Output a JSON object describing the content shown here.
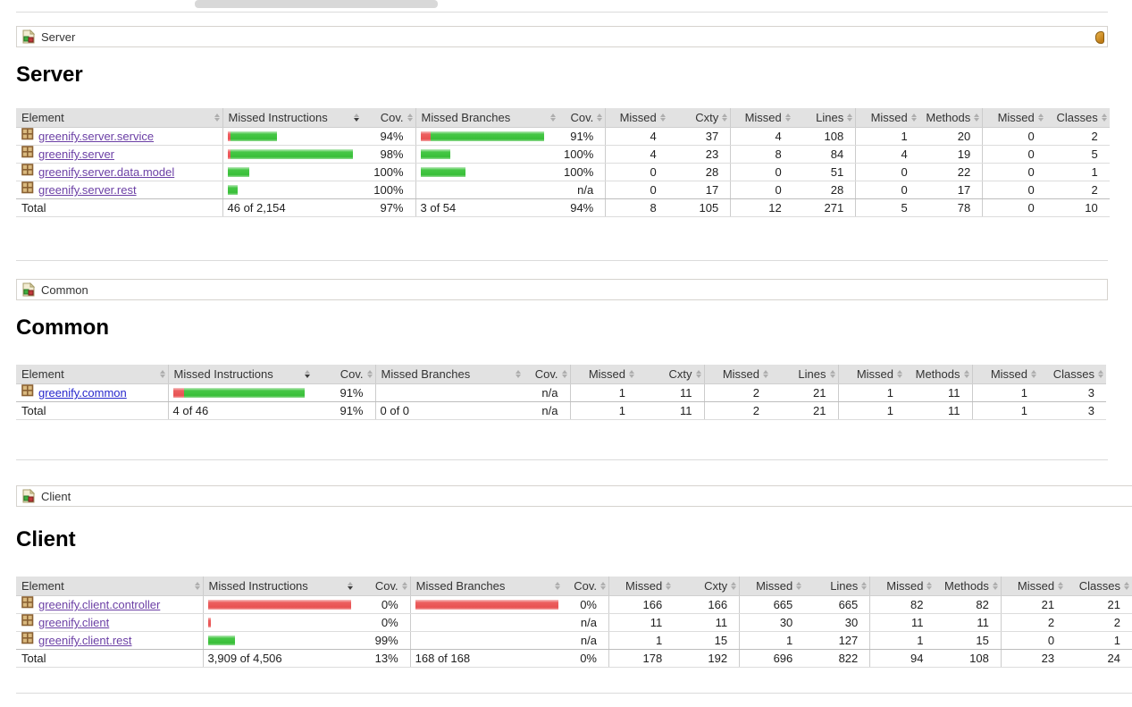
{
  "colors": {
    "bar_green": "#38bf38",
    "bar_red": "#e85252",
    "link_visited": "#6b3fa5",
    "link_unvisited": "#2727cc",
    "header_bg": "#e2e2e2",
    "crumb_border": "#d6d3ce",
    "session_icon_amber": "#c07c16"
  },
  "headers": [
    {
      "label": "Element",
      "align": "left",
      "sort": "none"
    },
    {
      "label": "Missed Instructions",
      "align": "left",
      "sort": "desc"
    },
    {
      "label": "Cov.",
      "align": "right",
      "sort": "none"
    },
    {
      "label": "Missed Branches",
      "align": "left",
      "sort": "none"
    },
    {
      "label": "Cov.",
      "align": "right",
      "sort": "none"
    },
    {
      "label": "Missed",
      "align": "right",
      "sort": "none"
    },
    {
      "label": "Cxty",
      "align": "right",
      "sort": "none"
    },
    {
      "label": "Missed",
      "align": "right",
      "sort": "none"
    },
    {
      "label": "Lines",
      "align": "right",
      "sort": "none"
    },
    {
      "label": "Missed",
      "align": "right",
      "sort": "none"
    },
    {
      "label": "Methods",
      "align": "right",
      "sort": "none"
    },
    {
      "label": "Missed",
      "align": "right",
      "sort": "none"
    },
    {
      "label": "Classes",
      "align": "right",
      "sort": "none"
    }
  ],
  "sections": [
    {
      "breadcrumb_label": "Server",
      "heading": "Server",
      "session_icon": true,
      "table": {
        "rows": [
          {
            "name": "greenify.server.service",
            "visited": true,
            "instr_bar": {
              "red": 3,
              "green": 52
            },
            "instr_cov": "94%",
            "branch_bar": {
              "red": 11,
              "green": 127
            },
            "branch_cov": "91%",
            "nums": [
              "4",
              "37",
              "4",
              "108",
              "1",
              "20",
              "0",
              "2"
            ]
          },
          {
            "name": "greenify.server",
            "visited": true,
            "instr_bar": {
              "red": 3,
              "green": 137
            },
            "instr_cov": "98%",
            "branch_bar": {
              "red": 0,
              "green": 33
            },
            "branch_cov": "100%",
            "nums": [
              "4",
              "23",
              "8",
              "84",
              "4",
              "19",
              "0",
              "5"
            ]
          },
          {
            "name": "greenify.server.data.model",
            "visited": true,
            "instr_bar": {
              "red": 0,
              "green": 24
            },
            "instr_cov": "100%",
            "branch_bar": {
              "red": 0,
              "green": 50
            },
            "branch_cov": "100%",
            "nums": [
              "0",
              "28",
              "0",
              "51",
              "0",
              "22",
              "0",
              "1"
            ]
          },
          {
            "name": "greenify.server.rest",
            "visited": true,
            "instr_bar": {
              "red": 0,
              "green": 11
            },
            "instr_cov": "100%",
            "branch_bar": {
              "red": 0,
              "green": 0
            },
            "branch_cov": "n/a",
            "nums": [
              "0",
              "17",
              "0",
              "28",
              "0",
              "17",
              "0",
              "2"
            ]
          }
        ],
        "total": {
          "label": "Total",
          "missed_instructions": "46 of 2,154",
          "instr_cov": "97%",
          "missed_branches": "3 of 54",
          "branch_cov": "94%",
          "nums": [
            "8",
            "105",
            "12",
            "271",
            "5",
            "78",
            "0",
            "10"
          ]
        }
      }
    },
    {
      "breadcrumb_label": "Common",
      "heading": "Common",
      "session_icon": false,
      "table": {
        "rows": [
          {
            "name": "greenify.common",
            "visited": false,
            "instr_bar": {
              "red": 12,
              "green": 135
            },
            "instr_cov": "91%",
            "branch_bar": {
              "red": 0,
              "green": 0
            },
            "branch_cov": "n/a",
            "nums": [
              "1",
              "11",
              "2",
              "21",
              "1",
              "11",
              "1",
              "3"
            ]
          }
        ],
        "total": {
          "label": "Total",
          "missed_instructions": "4 of 46",
          "instr_cov": "91%",
          "missed_branches": "0 of 0",
          "branch_cov": "n/a",
          "nums": [
            "1",
            "11",
            "2",
            "21",
            "1",
            "11",
            "1",
            "3"
          ]
        }
      }
    },
    {
      "breadcrumb_label": "Client",
      "heading": "Client",
      "session_icon": false,
      "table": {
        "rows": [
          {
            "name": "greenify.client.controller",
            "visited": true,
            "instr_bar": {
              "red": 160,
              "green": 0
            },
            "instr_cov": "0%",
            "branch_bar": {
              "red": 160,
              "green": 0
            },
            "branch_cov": "0%",
            "nums": [
              "166",
              "166",
              "665",
              "665",
              "82",
              "82",
              "21",
              "21"
            ]
          },
          {
            "name": "greenify.client",
            "visited": true,
            "instr_bar": {
              "red": 3,
              "green": 0
            },
            "instr_cov": "0%",
            "branch_bar": {
              "red": 0,
              "green": 0
            },
            "branch_cov": "n/a",
            "nums": [
              "11",
              "11",
              "30",
              "30",
              "11",
              "11",
              "2",
              "2"
            ]
          },
          {
            "name": "greenify.client.rest",
            "visited": true,
            "instr_bar": {
              "red": 0,
              "green": 30
            },
            "instr_cov": "99%",
            "branch_bar": {
              "red": 0,
              "green": 0
            },
            "branch_cov": "n/a",
            "nums": [
              "1",
              "15",
              "1",
              "127",
              "1",
              "15",
              "0",
              "1"
            ]
          }
        ],
        "total": {
          "label": "Total",
          "missed_instructions": "3,909 of 4,506",
          "instr_cov": "13%",
          "missed_branches": "168 of 168",
          "branch_cov": "0%",
          "nums": [
            "178",
            "192",
            "696",
            "822",
            "94",
            "108",
            "23",
            "24"
          ]
        }
      }
    }
  ]
}
